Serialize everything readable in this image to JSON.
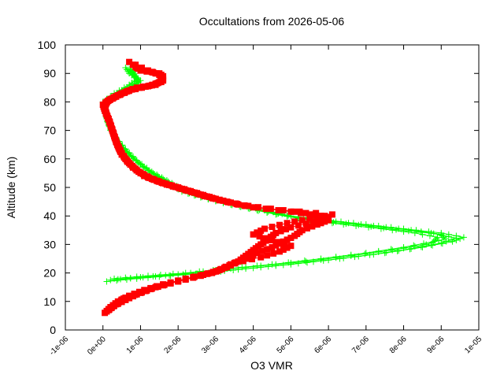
{
  "chart_data": {
    "type": "scatter",
    "title": "Occultations from 2026-05-06",
    "xlabel": "O3 VMR",
    "ylabel": "Altitude (km)",
    "xlim": [
      -1e-06,
      1e-05
    ],
    "ylim": [
      0,
      100
    ],
    "x_ticks": [
      {
        "value": -1e-06,
        "label": "-1e-06"
      },
      {
        "value": 0,
        "label": "0e+00"
      },
      {
        "value": 1e-06,
        "label": "1e-06"
      },
      {
        "value": 2e-06,
        "label": "2e-06"
      },
      {
        "value": 3e-06,
        "label": "3e-06"
      },
      {
        "value": 4e-06,
        "label": "4e-06"
      },
      {
        "value": 5e-06,
        "label": "5e-06"
      },
      {
        "value": 6e-06,
        "label": "6e-06"
      },
      {
        "value": 7e-06,
        "label": "7e-06"
      },
      {
        "value": 8e-06,
        "label": "8e-06"
      },
      {
        "value": 9e-06,
        "label": "9e-06"
      },
      {
        "value": 1e-05,
        "label": "1e-05"
      }
    ],
    "y_ticks": [
      {
        "value": 0,
        "label": "0"
      },
      {
        "value": 10,
        "label": "10"
      },
      {
        "value": 20,
        "label": "20"
      },
      {
        "value": 30,
        "label": "30"
      },
      {
        "value": 40,
        "label": "40"
      },
      {
        "value": 50,
        "label": "50"
      },
      {
        "value": 60,
        "label": "60"
      },
      {
        "value": 70,
        "label": "70"
      },
      {
        "value": 80,
        "label": "80"
      },
      {
        "value": 90,
        "label": "90"
      },
      {
        "value": 100,
        "label": "100"
      }
    ],
    "grid": false,
    "series": [
      {
        "color": "#00ff00",
        "marker": "plus",
        "profiles": [
          [
            [
              1e-07,
              17
            ],
            [
              9e-07,
              18
            ],
            [
              1.8e-06,
              19
            ],
            [
              2.8e-06,
              20
            ],
            [
              3.8e-06,
              21.5
            ],
            [
              5e-06,
              23
            ],
            [
              6.3e-06,
              25
            ],
            [
              7.5e-06,
              27
            ],
            [
              8.5e-06,
              29
            ],
            [
              9.3e-06,
              31
            ],
            [
              9.6e-06,
              32.5
            ],
            [
              9e-06,
              34
            ],
            [
              8e-06,
              35.5
            ],
            [
              7e-06,
              37
            ],
            [
              6e-06,
              38.5
            ],
            [
              5e-06,
              40
            ],
            [
              4.3e-06,
              42
            ],
            [
              3.6e-06,
              44
            ],
            [
              3e-06,
              46
            ],
            [
              2.4e-06,
              48
            ],
            [
              2e-06,
              50
            ],
            [
              1.6e-06,
              53
            ],
            [
              1.2e-06,
              56
            ],
            [
              8e-07,
              60
            ],
            [
              5e-07,
              64
            ],
            [
              3e-07,
              68
            ],
            [
              1.5e-07,
              72
            ],
            [
              5e-08,
              76
            ],
            [
              0.0,
              80
            ],
            [
              3e-07,
              83
            ],
            [
              7e-07,
              86
            ],
            [
              9e-07,
              88
            ],
            [
              7e-07,
              90
            ],
            [
              6e-07,
              92
            ]
          ],
          [
            [
              2e-07,
              17.5
            ],
            [
              1e-06,
              18.5
            ],
            [
              2e-06,
              19.5
            ],
            [
              3e-06,
              21
            ],
            [
              4.2e-06,
              22.5
            ],
            [
              5.4e-06,
              24
            ],
            [
              6.6e-06,
              26
            ],
            [
              7.7e-06,
              28
            ],
            [
              8.6e-06,
              30
            ],
            [
              9.1e-06,
              32
            ],
            [
              9e-06,
              33.5
            ],
            [
              8.2e-06,
              35
            ],
            [
              7.2e-06,
              36.5
            ],
            [
              6.2e-06,
              38
            ],
            [
              5.2e-06,
              39.5
            ],
            [
              4.4e-06,
              41.5
            ],
            [
              3.7e-06,
              43.5
            ],
            [
              3.1e-06,
              45.5
            ],
            [
              2.5e-06,
              47.5
            ],
            [
              2.1e-06,
              49.5
            ],
            [
              1.7e-06,
              52.5
            ],
            [
              1.3e-06,
              55.5
            ],
            [
              9e-07,
              59.5
            ],
            [
              6e-07,
              63.5
            ],
            [
              3.5e-07,
              67.5
            ],
            [
              2e-07,
              71.5
            ],
            [
              1e-07,
              75.5
            ],
            [
              5e-08,
              79
            ],
            [
              4e-07,
              82.5
            ],
            [
              8e-07,
              85.5
            ],
            [
              1e-06,
              87.5
            ],
            [
              8e-07,
              89.5
            ],
            [
              7e-07,
              91.5
            ]
          ],
          [
            [
              3e-07,
              18
            ],
            [
              1.2e-06,
              19
            ],
            [
              2.2e-06,
              20
            ],
            [
              3.3e-06,
              21.5
            ],
            [
              4.5e-06,
              23
            ],
            [
              5.8e-06,
              25
            ],
            [
              7e-06,
              27
            ],
            [
              8e-06,
              29
            ],
            [
              8.8e-06,
              31
            ],
            [
              8.9e-06,
              32.5
            ],
            [
              8.3e-06,
              34
            ],
            [
              7.4e-06,
              35.5
            ],
            [
              6.4e-06,
              37
            ],
            [
              5.5e-06,
              38.5
            ],
            [
              4.6e-06,
              40.5
            ],
            [
              3.9e-06,
              42.5
            ],
            [
              3.2e-06,
              44.5
            ],
            [
              2.6e-06,
              46.5
            ],
            [
              2.1e-06,
              48.5
            ],
            [
              1.8e-06,
              51
            ],
            [
              1.4e-06,
              54
            ],
            [
              1e-06,
              58
            ],
            [
              7e-07,
              62
            ],
            [
              4e-07,
              66
            ],
            [
              2e-07,
              70
            ],
            [
              1e-07,
              74
            ],
            [
              5e-08,
              78
            ],
            [
              2e-07,
              81
            ],
            [
              6e-07,
              84.5
            ],
            [
              9.5e-07,
              87
            ],
            [
              8.5e-07,
              89
            ],
            [
              7.5e-07,
              91
            ]
          ],
          [
            [
              4e-07,
              17.8
            ],
            [
              1.4e-06,
              18.8
            ],
            [
              2.5e-06,
              19.8
            ],
            [
              3.6e-06,
              21.2
            ],
            [
              4.8e-06,
              22.8
            ],
            [
              6e-06,
              24.5
            ],
            [
              7.2e-06,
              26.5
            ],
            [
              8.2e-06,
              28.5
            ],
            [
              9e-06,
              30.5
            ],
            [
              9.4e-06,
              32.2
            ],
            [
              8.8e-06,
              33.8
            ],
            [
              7.8e-06,
              35.2
            ],
            [
              6.8e-06,
              36.8
            ],
            [
              5.8e-06,
              38.2
            ],
            [
              4.9e-06,
              40
            ],
            [
              4.1e-06,
              42
            ],
            [
              3.4e-06,
              44
            ],
            [
              2.8e-06,
              46
            ],
            [
              2.3e-06,
              48
            ],
            [
              1.9e-06,
              50.5
            ],
            [
              1.5e-06,
              53.5
            ],
            [
              1.1e-06,
              57
            ],
            [
              7.5e-07,
              61
            ],
            [
              4.5e-07,
              65
            ],
            [
              2.5e-07,
              69
            ],
            [
              1.2e-07,
              73
            ],
            [
              6e-08,
              77
            ],
            [
              1e-07,
              80.5
            ],
            [
              5e-07,
              84
            ],
            [
              9e-07,
              86.5
            ],
            [
              9e-07,
              88.5
            ],
            [
              8e-07,
              90.5
            ]
          ]
        ]
      },
      {
        "color": "#ff0000",
        "marker": "filled-square",
        "profiles": [
          [
            [
              5e-08,
              6
            ],
            [
              2e-07,
              8
            ],
            [
              4e-07,
              10
            ],
            [
              7e-07,
              12
            ],
            [
              1.1e-06,
              14
            ],
            [
              1.6e-06,
              16
            ],
            [
              2.2e-06,
              18
            ],
            [
              2.9e-06,
              20
            ],
            [
              3.3e-06,
              22
            ],
            [
              3.6e-06,
              24
            ],
            [
              3.8e-06,
              26
            ],
            [
              4e-06,
              28
            ],
            [
              4.2e-06,
              30
            ],
            [
              4.4e-06,
              32
            ],
            [
              4.6e-06,
              34
            ],
            [
              5e-06,
              36
            ],
            [
              5.6e-06,
              38
            ],
            [
              6e-06,
              39.5
            ],
            [
              5.4e-06,
              41
            ],
            [
              4.4e-06,
              42.5
            ],
            [
              3.6e-06,
              44
            ],
            [
              3e-06,
              46
            ],
            [
              2.5e-06,
              48
            ],
            [
              2e-06,
              50
            ],
            [
              1.5e-06,
              52
            ],
            [
              1.1e-06,
              54
            ],
            [
              8e-07,
              57
            ],
            [
              6e-07,
              60
            ],
            [
              4.5e-07,
              63
            ],
            [
              3.5e-07,
              66
            ],
            [
              2.5e-07,
              70
            ],
            [
              1.5e-07,
              74
            ],
            [
              5e-08,
              77
            ],
            [
              0.0,
              79
            ],
            [
              2e-07,
              81
            ],
            [
              5e-07,
              83
            ],
            [
              9e-07,
              85
            ],
            [
              1.4e-06,
              86
            ],
            [
              1.6e-06,
              88
            ],
            [
              1.5e-06,
              90
            ],
            [
              1e-06,
              91
            ],
            [
              8e-07,
              93
            ]
          ],
          [
            [
              1e-07,
              6.5
            ],
            [
              3e-07,
              8.5
            ],
            [
              6e-07,
              10.5
            ],
            [
              9e-07,
              12.5
            ],
            [
              1.3e-06,
              14.5
            ],
            [
              1.8e-06,
              16.5
            ],
            [
              2.4e-06,
              18.5
            ],
            [
              3e-06,
              20.5
            ],
            [
              3.4e-06,
              23
            ],
            [
              3.8e-06,
              25
            ],
            [
              4.1e-06,
              27
            ],
            [
              4.5e-06,
              29
            ],
            [
              4.8e-06,
              31
            ],
            [
              5.1e-06,
              33
            ],
            [
              5.3e-06,
              35
            ],
            [
              5.7e-06,
              37
            ],
            [
              6e-06,
              38.5
            ],
            [
              5.8e-06,
              40
            ],
            [
              5e-06,
              41.5
            ],
            [
              4e-06,
              43
            ],
            [
              3.3e-06,
              45
            ],
            [
              2.7e-06,
              47
            ],
            [
              2.2e-06,
              49
            ],
            [
              1.7e-06,
              51
            ],
            [
              1.3e-06,
              53
            ],
            [
              9.5e-07,
              55.5
            ],
            [
              7e-07,
              58.5
            ],
            [
              5e-07,
              61.5
            ],
            [
              4e-07,
              64.5
            ],
            [
              3e-07,
              68
            ],
            [
              2e-07,
              72
            ],
            [
              1e-07,
              75.5
            ],
            [
              5e-08,
              78
            ],
            [
              1e-07,
              80
            ],
            [
              3.5e-07,
              82
            ],
            [
              7e-07,
              84
            ],
            [
              1.2e-06,
              85.5
            ],
            [
              1.55e-06,
              87
            ],
            [
              1.6e-06,
              89
            ],
            [
              1.3e-06,
              90.5
            ],
            [
              9e-07,
              92
            ]
          ],
          [
            [
              1.5e-07,
              7
            ],
            [
              3.5e-07,
              9
            ],
            [
              5.5e-07,
              11
            ],
            [
              1e-06,
              13
            ],
            [
              1.4e-06,
              15
            ],
            [
              2e-06,
              17
            ],
            [
              2.6e-06,
              19
            ],
            [
              3.1e-06,
              21
            ],
            [
              3.5e-06,
              23.5
            ],
            [
              4.2e-06,
              25.5
            ],
            [
              4.7e-06,
              27.5
            ],
            [
              5e-06,
              29.5
            ],
            [
              4.5e-06,
              31.5
            ],
            [
              4e-06,
              33.5
            ],
            [
              4.3e-06,
              35.5
            ],
            [
              4.9e-06,
              37.5
            ],
            [
              5.5e-06,
              39
            ],
            [
              6.1e-06,
              40.5
            ],
            [
              4.8e-06,
              42
            ],
            [
              3.8e-06,
              43.5
            ],
            [
              3.1e-06,
              45.5
            ],
            [
              2.6e-06,
              47.5
            ],
            [
              2.1e-06,
              49.5
            ],
            [
              1.6e-06,
              51.5
            ],
            [
              1.2e-06,
              53.5
            ],
            [
              9e-07,
              56
            ],
            [
              6.5e-07,
              59
            ],
            [
              5e-07,
              62
            ],
            [
              3.8e-07,
              65
            ],
            [
              2.8e-07,
              69
            ],
            [
              1.8e-07,
              73
            ],
            [
              8e-08,
              76
            ],
            [
              2e-08,
              78.5
            ],
            [
              1.5e-07,
              80.5
            ],
            [
              4.5e-07,
              82.5
            ],
            [
              8e-07,
              84.5
            ],
            [
              1.3e-06,
              85.8
            ],
            [
              1.6e-06,
              87.5
            ],
            [
              1.55e-06,
              89.5
            ],
            [
              1.2e-06,
              91
            ],
            [
              7e-07,
              94
            ]
          ]
        ]
      }
    ]
  }
}
